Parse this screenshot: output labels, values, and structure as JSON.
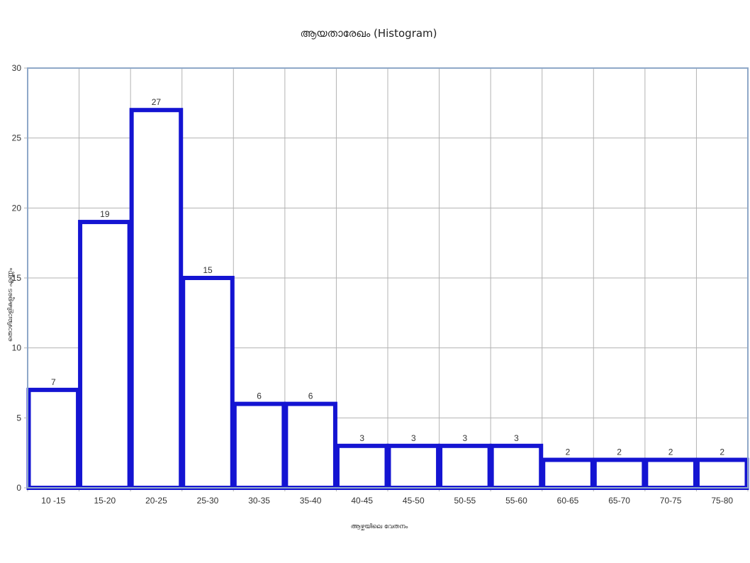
{
  "chart_data": {
    "type": "bar",
    "title": "ആയതാരേഖം (Histogram)",
    "xlabel": "ആഴ്ചയിലെ വേതനം",
    "ylabel": "തൊഴിലാളികളുടെ എണ്ണം",
    "categories": [
      "10 -15",
      "15-20",
      "20-25",
      "25-30",
      "30-35",
      "35-40",
      "40-45",
      "45-50",
      "50-55",
      "55-60",
      "60-65",
      "65-70",
      "70-75",
      "75-80"
    ],
    "values": [
      7,
      19,
      27,
      15,
      6,
      6,
      3,
      3,
      3,
      3,
      2,
      2,
      2,
      2
    ],
    "ylim": [
      0,
      30
    ],
    "yticks": [
      0,
      5,
      10,
      15,
      20,
      25,
      30
    ],
    "grid": true,
    "legend": "none",
    "colors": {
      "bar_stroke": "#1414d2",
      "bar_fill": "#ffffff",
      "grid": "#b3b3b3",
      "axis": "#8fa8c8"
    }
  }
}
